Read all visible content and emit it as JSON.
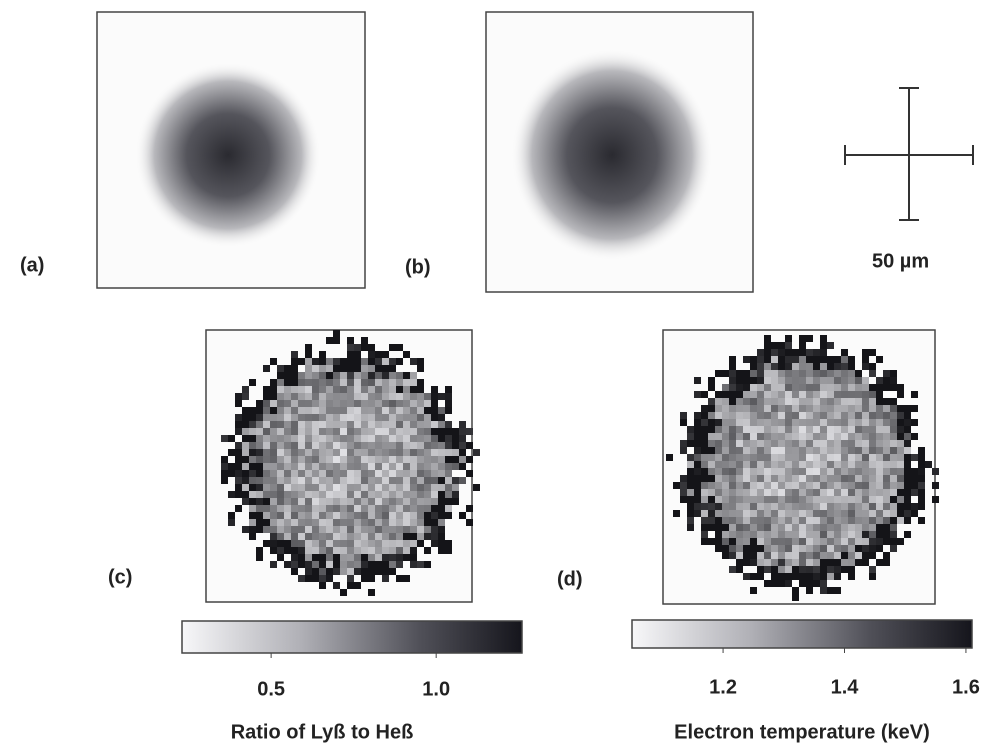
{
  "panels": [
    {
      "label": "(a)"
    },
    {
      "label": "(b)"
    },
    {
      "label": "(c)"
    },
    {
      "label": "(d)"
    }
  ],
  "scale_bar": {
    "label": "50 µm"
  },
  "colorbars": [
    {
      "title": "Ratio of Lyß to Heß",
      "lim": [
        0.23,
        1.26
      ],
      "ticks": [
        0.5,
        {
          "value": 1,
          "label": "1.0"
        }
      ]
    },
    {
      "title": "Electron temperature (keV)",
      "lim": [
        1.05,
        1.61
      ],
      "ticks": [
        1.2,
        1.4,
        1.6
      ]
    }
  ]
}
